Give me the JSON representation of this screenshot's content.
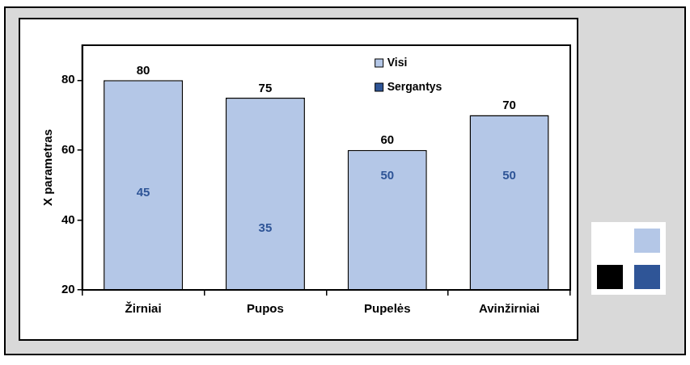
{
  "chart_data": {
    "type": "bar",
    "y_label": "X parametras",
    "categories": [
      "Žirniai",
      "Pupos",
      "Pupelės",
      "Avinžirniai"
    ],
    "series": [
      {
        "name": "Visi",
        "color": "#b4c7e7",
        "values": [
          80,
          75,
          60,
          70
        ]
      },
      {
        "name": "Sergantys",
        "color": "#2f5597",
        "values": [
          45,
          35,
          50,
          50
        ]
      }
    ],
    "ylim": [
      20,
      90
    ],
    "yticks": [
      20,
      40,
      60,
      80
    ],
    "grid": false,
    "legend": "top",
    "data_labels": true,
    "stacked": false
  }
}
